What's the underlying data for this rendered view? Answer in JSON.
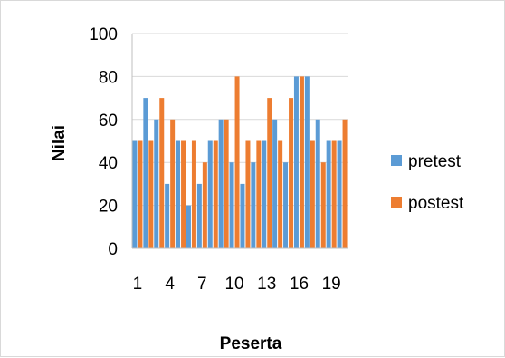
{
  "chart_data": {
    "type": "bar",
    "xlabel": "Peserta",
    "ylabel": "Nilai",
    "ylim": [
      0,
      100
    ],
    "yticks": [
      0,
      20,
      40,
      60,
      80,
      100
    ],
    "categories": [
      1,
      2,
      3,
      4,
      5,
      6,
      7,
      8,
      9,
      10,
      11,
      12,
      13,
      14,
      15,
      16,
      17,
      18,
      19,
      20
    ],
    "xtick_labels": [
      "1",
      "4",
      "7",
      "10",
      "13",
      "16",
      "19"
    ],
    "xtick_indices": [
      0,
      3,
      6,
      9,
      12,
      15,
      18
    ],
    "grid": true,
    "legend_position": "right",
    "series": [
      {
        "name": "pretest",
        "color": "#5b9bd5",
        "values": [
          50,
          70,
          60,
          30,
          50,
          20,
          30,
          50,
          60,
          40,
          30,
          40,
          50,
          60,
          40,
          80,
          80,
          60,
          50,
          50
        ]
      },
      {
        "name": "postest",
        "color": "#ed7d31",
        "values": [
          50,
          50,
          70,
          60,
          50,
          50,
          40,
          50,
          60,
          80,
          50,
          50,
          70,
          50,
          70,
          80,
          50,
          40,
          50,
          60
        ]
      }
    ]
  }
}
